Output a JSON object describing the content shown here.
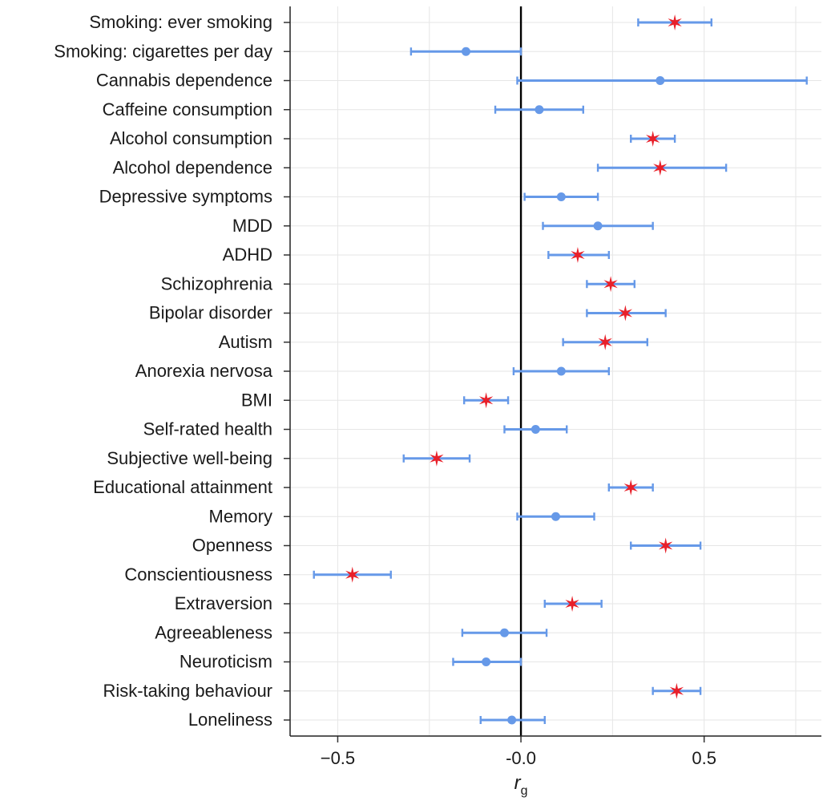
{
  "chart_data": {
    "type": "forest",
    "title": "",
    "xlabel": "r",
    "xlabel_subscript": "g",
    "xlim": [
      -0.63,
      0.82
    ],
    "x_ticks": [
      -0.5,
      0.0,
      0.5
    ],
    "x_tick_labels": [
      "−0.5",
      "-0.0",
      "0.5"
    ],
    "grid": true,
    "reference_line": 0.0,
    "colors": {
      "ci": "#6699e8",
      "point": "#6699e8",
      "significant_marker": "#e8202a",
      "grid": "#e6e6e6",
      "zero_line": "#000000"
    },
    "rows": [
      {
        "label": "Smoking: ever smoking",
        "estimate": 0.42,
        "lower": 0.32,
        "upper": 0.52,
        "significant": true
      },
      {
        "label": "Smoking: cigarettes per day",
        "estimate": -0.15,
        "lower": -0.3,
        "upper": 0.0,
        "significant": false
      },
      {
        "label": "Cannabis dependence",
        "estimate": 0.38,
        "lower": -0.01,
        "upper": 0.78,
        "significant": false
      },
      {
        "label": "Caffeine consumption",
        "estimate": 0.05,
        "lower": -0.07,
        "upper": 0.17,
        "significant": false
      },
      {
        "label": "Alcohol consumption",
        "estimate": 0.36,
        "lower": 0.3,
        "upper": 0.42,
        "significant": true
      },
      {
        "label": "Alcohol dependence",
        "estimate": 0.38,
        "lower": 0.21,
        "upper": 0.56,
        "significant": true
      },
      {
        "label": "Depressive symptoms",
        "estimate": 0.11,
        "lower": 0.01,
        "upper": 0.21,
        "significant": false
      },
      {
        "label": "MDD",
        "estimate": 0.21,
        "lower": 0.06,
        "upper": 0.36,
        "significant": false
      },
      {
        "label": "ADHD",
        "estimate": 0.155,
        "lower": 0.075,
        "upper": 0.24,
        "significant": true
      },
      {
        "label": "Schizophrenia",
        "estimate": 0.245,
        "lower": 0.18,
        "upper": 0.31,
        "significant": true
      },
      {
        "label": "Bipolar disorder",
        "estimate": 0.285,
        "lower": 0.18,
        "upper": 0.395,
        "significant": true
      },
      {
        "label": "Autism",
        "estimate": 0.23,
        "lower": 0.115,
        "upper": 0.345,
        "significant": true
      },
      {
        "label": "Anorexia nervosa",
        "estimate": 0.11,
        "lower": -0.02,
        "upper": 0.24,
        "significant": false
      },
      {
        "label": "BMI",
        "estimate": -0.095,
        "lower": -0.155,
        "upper": -0.035,
        "significant": true
      },
      {
        "label": "Self-rated health",
        "estimate": 0.04,
        "lower": -0.045,
        "upper": 0.125,
        "significant": false
      },
      {
        "label": "Subjective well-being",
        "estimate": -0.23,
        "lower": -0.32,
        "upper": -0.14,
        "significant": true
      },
      {
        "label": "Educational attainment",
        "estimate": 0.3,
        "lower": 0.24,
        "upper": 0.36,
        "significant": true
      },
      {
        "label": "Memory",
        "estimate": 0.095,
        "lower": -0.01,
        "upper": 0.2,
        "significant": false
      },
      {
        "label": "Openness",
        "estimate": 0.395,
        "lower": 0.3,
        "upper": 0.49,
        "significant": true
      },
      {
        "label": "Conscientiousness",
        "estimate": -0.46,
        "lower": -0.565,
        "upper": -0.355,
        "significant": true
      },
      {
        "label": "Extraversion",
        "estimate": 0.14,
        "lower": 0.065,
        "upper": 0.22,
        "significant": true
      },
      {
        "label": "Agreeableness",
        "estimate": -0.045,
        "lower": -0.16,
        "upper": 0.07,
        "significant": false
      },
      {
        "label": "Neuroticism",
        "estimate": -0.095,
        "lower": -0.185,
        "upper": 0.0,
        "significant": false
      },
      {
        "label": "Risk-taking behaviour",
        "estimate": 0.425,
        "lower": 0.36,
        "upper": 0.49,
        "significant": true
      },
      {
        "label": "Loneliness",
        "estimate": -0.025,
        "lower": -0.11,
        "upper": 0.065,
        "significant": false
      }
    ]
  }
}
